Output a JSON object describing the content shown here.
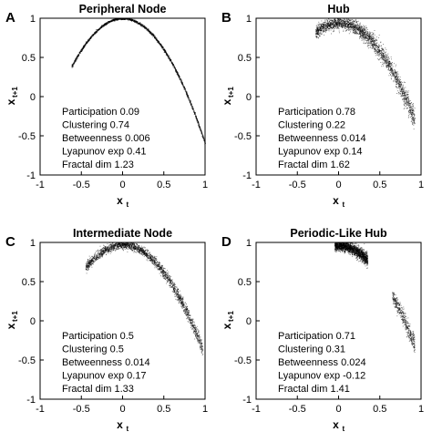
{
  "chart_data": [
    {
      "type": "scatter",
      "letter": "A",
      "title": "Peripheral Node",
      "xlabel": "x",
      "xlabel_sub": "t",
      "ylabel": "x",
      "ylabel_sub": "t+1",
      "xlim": [
        -1,
        1
      ],
      "ylim": [
        -1,
        1
      ],
      "xticks": [
        "-1",
        "-0.5",
        "0",
        "0.5",
        "1"
      ],
      "yticks": [
        "1",
        "0.5",
        "0",
        "-0.5",
        "-1"
      ],
      "stats": [
        "Participation 0.09",
        "Clustering 0.74",
        "Betweenness 0.006",
        "Lyapunov exp 0.41",
        "Fractal dim 1.23"
      ],
      "attractor": {
        "a": 1.6,
        "x_range": [
          -0.62,
          1.0
        ],
        "spread": 0.012,
        "shift": 0.0
      },
      "points": 2200,
      "color": "#000000"
    },
    {
      "type": "scatter",
      "letter": "B",
      "title": "Hub",
      "xlabel": "x",
      "xlabel_sub": "t",
      "ylabel": "x",
      "ylabel_sub": "t+1",
      "xlim": [
        -1,
        1
      ],
      "ylim": [
        -1,
        1
      ],
      "xticks": [
        "-1",
        "-0.5",
        "0",
        "0.5",
        "1"
      ],
      "yticks": [
        "1",
        "0.5",
        "0",
        "-0.5",
        "-1"
      ],
      "stats": [
        "Participation 0.78",
        "Clustering 0.22",
        "Betweenness 0.014",
        "Lyapunov exp 0.14",
        "Fractal dim 1.62"
      ],
      "attractor": {
        "a": 1.45,
        "x_range": [
          -0.28,
          0.92
        ],
        "spread": 0.07,
        "shift": -0.06
      },
      "points": 2400,
      "color": "#000000"
    },
    {
      "type": "scatter",
      "letter": "C",
      "title": "Intermediate Node",
      "xlabel": "x",
      "xlabel_sub": "t",
      "ylabel": "x",
      "ylabel_sub": "t+1",
      "xlim": [
        -1,
        1
      ],
      "ylim": [
        -1,
        1
      ],
      "xticks": [
        "-1",
        "-0.5",
        "0",
        "0.5",
        "1"
      ],
      "yticks": [
        "1",
        "0.5",
        "0",
        "-0.5",
        "-1"
      ],
      "stats": [
        "Participation 0.5",
        "Clustering 0.5",
        "Betweenness 0.014",
        "Lyapunov exp 0.17",
        "Fractal dim 1.33"
      ],
      "attractor": {
        "a": 1.42,
        "x_range": [
          -0.45,
          0.97
        ],
        "spread": 0.045,
        "shift": -0.03
      },
      "points": 2400,
      "color": "#000000"
    },
    {
      "type": "scatter",
      "letter": "D",
      "title": "Periodic-Like Hub",
      "xlabel": "x",
      "xlabel_sub": "t",
      "ylabel": "x",
      "ylabel_sub": "t+1",
      "xlim": [
        -1,
        1
      ],
      "ylim": [
        -1,
        1
      ],
      "xticks": [
        "-1",
        "-0.5",
        "0",
        "0.5",
        "1"
      ],
      "yticks": [
        "1",
        "0.5",
        "0",
        "-0.5",
        "-1"
      ],
      "stats": [
        "Participation 0.71",
        "Clustering 0.31",
        "Betweenness 0.024",
        "Lyapunov exp -0.12",
        "Fractal dim 1.41"
      ],
      "attractor": {
        "a": 1.5,
        "x_range": [
          -0.22,
          0.95
        ],
        "spread": 0.06,
        "shift": -0.04,
        "clusters": [
          [
            -0.05,
            0.35,
            0.8
          ],
          [
            0.65,
            0.92,
            0.2
          ]
        ]
      },
      "points": 2400,
      "color": "#000000"
    }
  ]
}
